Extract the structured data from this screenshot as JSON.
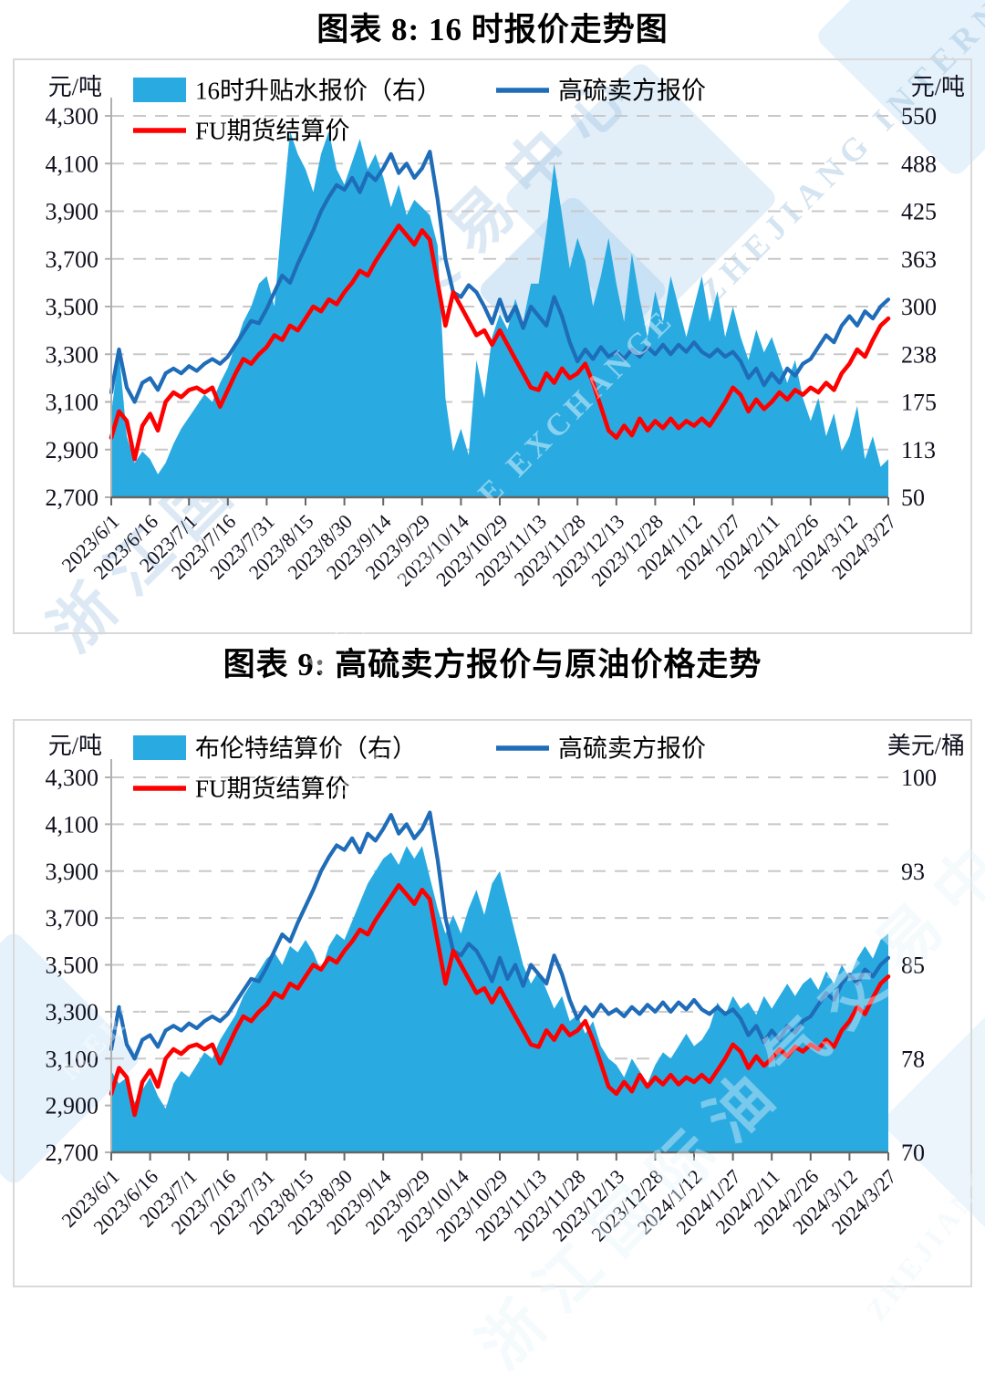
{
  "watermark": {
    "org_cn": "浙江国际油气交易中心",
    "org_en_1": "ZHEJIANG INTERNATIONAL",
    "org_en_2": "MERCANTILE EXCHANGE",
    "org_en_full": "ZHEJIANG INTERNATIONAL MERCANTILE EXCHANGE",
    "color": "#9fc3e0"
  },
  "chart_data": [
    {
      "type": "combo-area-line",
      "title": "图表 8: 16 时报价走势图",
      "grid": "dashed-horizontal",
      "legend_position": "top-left-two-rows",
      "y_left": {
        "unit": "元/吨",
        "min": 2700,
        "max": 4300,
        "tick_labels": [
          "4,300",
          "4,100",
          "3,900",
          "3,700",
          "3,500",
          "3,300",
          "3,100",
          "2,900",
          "2,700"
        ]
      },
      "y_right": {
        "unit": "元/吨",
        "min": 50,
        "max": 550,
        "tick_labels": [
          "550",
          "488",
          "425",
          "363",
          "300",
          "238",
          "175",
          "113",
          "50"
        ]
      },
      "x_tick_labels": [
        "2023/6/1",
        "2023/6/16",
        "2023/7/1",
        "2023/7/16",
        "2023/7/31",
        "2023/8/15",
        "2023/8/30",
        "2023/9/14",
        "2023/9/29",
        "2023/10/14",
        "2023/10/29",
        "2023/11/13",
        "2023/11/28",
        "2023/12/13",
        "2023/12/28",
        "2024/1/12",
        "2024/1/27",
        "2024/2/11",
        "2024/2/26",
        "2024/3/12",
        "2024/3/27"
      ],
      "series": [
        {
          "name": "16时升贴水报价（右）",
          "type": "area",
          "axis": "right",
          "color": "#29abe2",
          "values": [
            160,
            240,
            130,
            95,
            110,
            100,
            80,
            95,
            120,
            140,
            155,
            170,
            185,
            175,
            200,
            220,
            250,
            280,
            300,
            330,
            340,
            300,
            420,
            530,
            500,
            480,
            450,
            500,
            530,
            480,
            460,
            490,
            520,
            480,
            500,
            470,
            430,
            460,
            420,
            440,
            430,
            420,
            380,
            180,
            110,
            140,
            105,
            230,
            180,
            260,
            290,
            270,
            310,
            280,
            330,
            330,
            400,
            488,
            420,
            350,
            390,
            360,
            300,
            340,
            390,
            330,
            280,
            370,
            310,
            260,
            320,
            280,
            340,
            300,
            260,
            300,
            340,
            280,
            320,
            260,
            300,
            260,
            230,
            270,
            240,
            260,
            230,
            200,
            230,
            180,
            150,
            180,
            130,
            160,
            110,
            130,
            170,
            100,
            130,
            90,
            100
          ]
        },
        {
          "name": "高硫卖方报价",
          "type": "line",
          "axis": "left",
          "color": "#1f6cb8",
          "values": [
            3140,
            3320,
            3160,
            3100,
            3180,
            3200,
            3150,
            3220,
            3240,
            3220,
            3250,
            3230,
            3260,
            3280,
            3260,
            3290,
            3340,
            3390,
            3440,
            3430,
            3490,
            3560,
            3630,
            3600,
            3680,
            3750,
            3820,
            3900,
            3960,
            4010,
            3990,
            4040,
            3980,
            4060,
            4030,
            4080,
            4140,
            4060,
            4100,
            4040,
            4080,
            4150,
            3950,
            3700,
            3560,
            3540,
            3590,
            3560,
            3500,
            3430,
            3530,
            3440,
            3500,
            3410,
            3500,
            3460,
            3420,
            3540,
            3460,
            3350,
            3270,
            3320,
            3280,
            3330,
            3290,
            3310,
            3280,
            3320,
            3290,
            3330,
            3300,
            3340,
            3300,
            3340,
            3310,
            3350,
            3310,
            3290,
            3320,
            3290,
            3310,
            3270,
            3200,
            3240,
            3170,
            3220,
            3180,
            3240,
            3210,
            3260,
            3280,
            3330,
            3380,
            3350,
            3420,
            3460,
            3420,
            3480,
            3450,
            3500,
            3530
          ]
        },
        {
          "name": "FU期货结算价",
          "type": "line",
          "axis": "left",
          "color": "#fe0000",
          "values": [
            2950,
            3060,
            3020,
            2860,
            3000,
            3050,
            2980,
            3100,
            3140,
            3120,
            3150,
            3160,
            3140,
            3160,
            3080,
            3150,
            3220,
            3280,
            3260,
            3300,
            3330,
            3380,
            3360,
            3420,
            3400,
            3450,
            3500,
            3480,
            3530,
            3510,
            3560,
            3600,
            3650,
            3630,
            3690,
            3740,
            3790,
            3840,
            3800,
            3760,
            3820,
            3780,
            3600,
            3420,
            3560,
            3500,
            3440,
            3380,
            3400,
            3340,
            3400,
            3340,
            3280,
            3220,
            3160,
            3150,
            3220,
            3180,
            3240,
            3200,
            3220,
            3260,
            3180,
            3080,
            2980,
            2950,
            3000,
            2960,
            3030,
            2980,
            3020,
            2990,
            3030,
            2990,
            3020,
            3000,
            3030,
            3000,
            3050,
            3100,
            3160,
            3130,
            3060,
            3110,
            3070,
            3100,
            3140,
            3110,
            3150,
            3130,
            3160,
            3140,
            3180,
            3150,
            3220,
            3260,
            3320,
            3290,
            3360,
            3420,
            3450
          ]
        }
      ]
    },
    {
      "type": "combo-area-line",
      "title": "图表 9: 高硫卖方报价与原油价格走势",
      "grid": "dashed-horizontal",
      "legend_position": "top-left-two-rows",
      "y_left": {
        "unit": "元/吨",
        "min": 2700,
        "max": 4300,
        "tick_labels": [
          "4,300",
          "4,100",
          "3,900",
          "3,700",
          "3,500",
          "3,300",
          "3,100",
          "2,900",
          "2,700"
        ]
      },
      "y_right": {
        "unit": "美元/桶",
        "min": 70,
        "max": 100,
        "tick_labels": [
          "100",
          "",
          "93",
          "",
          "85",
          "",
          "78",
          "",
          "70"
        ]
      },
      "x_tick_labels": [
        "2023/6/1",
        "2023/6/16",
        "2023/7/1",
        "2023/7/16",
        "2023/7/31",
        "2023/8/15",
        "2023/8/30",
        "2023/9/14",
        "2023/9/29",
        "2023/10/14",
        "2023/10/29",
        "2023/11/13",
        "2023/11/28",
        "2023/12/13",
        "2023/12/28",
        "2024/1/12",
        "2024/1/27",
        "2024/2/11",
        "2024/2/26",
        "2024/3/12",
        "2024/3/27"
      ],
      "series": [
        {
          "name": "布伦特结算价（右）",
          "type": "area",
          "axis": "right",
          "color": "#29abe2",
          "values": [
            76.5,
            75.5,
            76,
            74,
            75,
            76,
            74.5,
            73.5,
            75.5,
            76.5,
            76,
            77,
            78,
            77.5,
            79,
            80,
            81,
            82.5,
            83.5,
            84.5,
            85.5,
            86,
            85,
            86.5,
            86,
            87,
            86,
            84.5,
            86.5,
            87.5,
            87,
            88.5,
            90,
            91.5,
            92.5,
            93.5,
            94,
            93,
            94.5,
            93.5,
            94.5,
            92,
            89.5,
            87.5,
            89,
            87.5,
            89.5,
            91,
            89,
            91.5,
            92.5,
            90,
            87.5,
            85,
            83.5,
            84.5,
            83,
            81.5,
            82.5,
            80.5,
            81,
            79.5,
            80.5,
            78.5,
            77.5,
            77,
            76,
            77.5,
            76.5,
            75.5,
            77,
            78,
            77.5,
            78.5,
            79.5,
            78.5,
            79,
            80,
            82,
            81,
            82.5,
            81.5,
            82,
            81,
            82.5,
            81.5,
            82.5,
            83.5,
            82.5,
            83.5,
            84,
            83,
            84.5,
            83.5,
            85,
            84,
            85.5,
            86.5,
            85.5,
            87,
            87.5
          ]
        },
        {
          "name": "高硫卖方报价",
          "type": "line",
          "axis": "left",
          "color": "#1f6cb8",
          "values": [
            3140,
            3320,
            3160,
            3100,
            3180,
            3200,
            3150,
            3220,
            3240,
            3220,
            3250,
            3230,
            3260,
            3280,
            3260,
            3290,
            3340,
            3390,
            3440,
            3430,
            3490,
            3560,
            3630,
            3600,
            3680,
            3750,
            3820,
            3900,
            3960,
            4010,
            3990,
            4040,
            3980,
            4060,
            4030,
            4080,
            4140,
            4060,
            4100,
            4040,
            4080,
            4150,
            3950,
            3700,
            3560,
            3540,
            3590,
            3560,
            3500,
            3430,
            3530,
            3440,
            3500,
            3410,
            3500,
            3460,
            3420,
            3540,
            3460,
            3350,
            3270,
            3320,
            3280,
            3330,
            3290,
            3310,
            3280,
            3320,
            3290,
            3330,
            3300,
            3340,
            3300,
            3340,
            3310,
            3350,
            3310,
            3290,
            3320,
            3290,
            3310,
            3270,
            3200,
            3240,
            3170,
            3220,
            3180,
            3240,
            3210,
            3260,
            3280,
            3330,
            3380,
            3350,
            3420,
            3460,
            3420,
            3480,
            3450,
            3500,
            3530
          ]
        },
        {
          "name": "FU期货结算价",
          "type": "line",
          "axis": "left",
          "color": "#fe0000",
          "values": [
            2950,
            3060,
            3020,
            2860,
            3000,
            3050,
            2980,
            3100,
            3140,
            3120,
            3150,
            3160,
            3140,
            3160,
            3080,
            3150,
            3220,
            3280,
            3260,
            3300,
            3330,
            3380,
            3360,
            3420,
            3400,
            3450,
            3500,
            3480,
            3530,
            3510,
            3560,
            3600,
            3650,
            3630,
            3690,
            3740,
            3790,
            3840,
            3800,
            3760,
            3820,
            3780,
            3600,
            3420,
            3560,
            3500,
            3440,
            3380,
            3400,
            3340,
            3400,
            3340,
            3280,
            3220,
            3160,
            3150,
            3220,
            3180,
            3240,
            3200,
            3220,
            3260,
            3180,
            3080,
            2980,
            2950,
            3000,
            2960,
            3030,
            2980,
            3020,
            2990,
            3030,
            2990,
            3020,
            3000,
            3030,
            3000,
            3050,
            3100,
            3160,
            3130,
            3060,
            3110,
            3070,
            3100,
            3140,
            3110,
            3150,
            3130,
            3160,
            3140,
            3180,
            3150,
            3220,
            3260,
            3320,
            3290,
            3360,
            3420,
            3450
          ]
        }
      ]
    }
  ]
}
